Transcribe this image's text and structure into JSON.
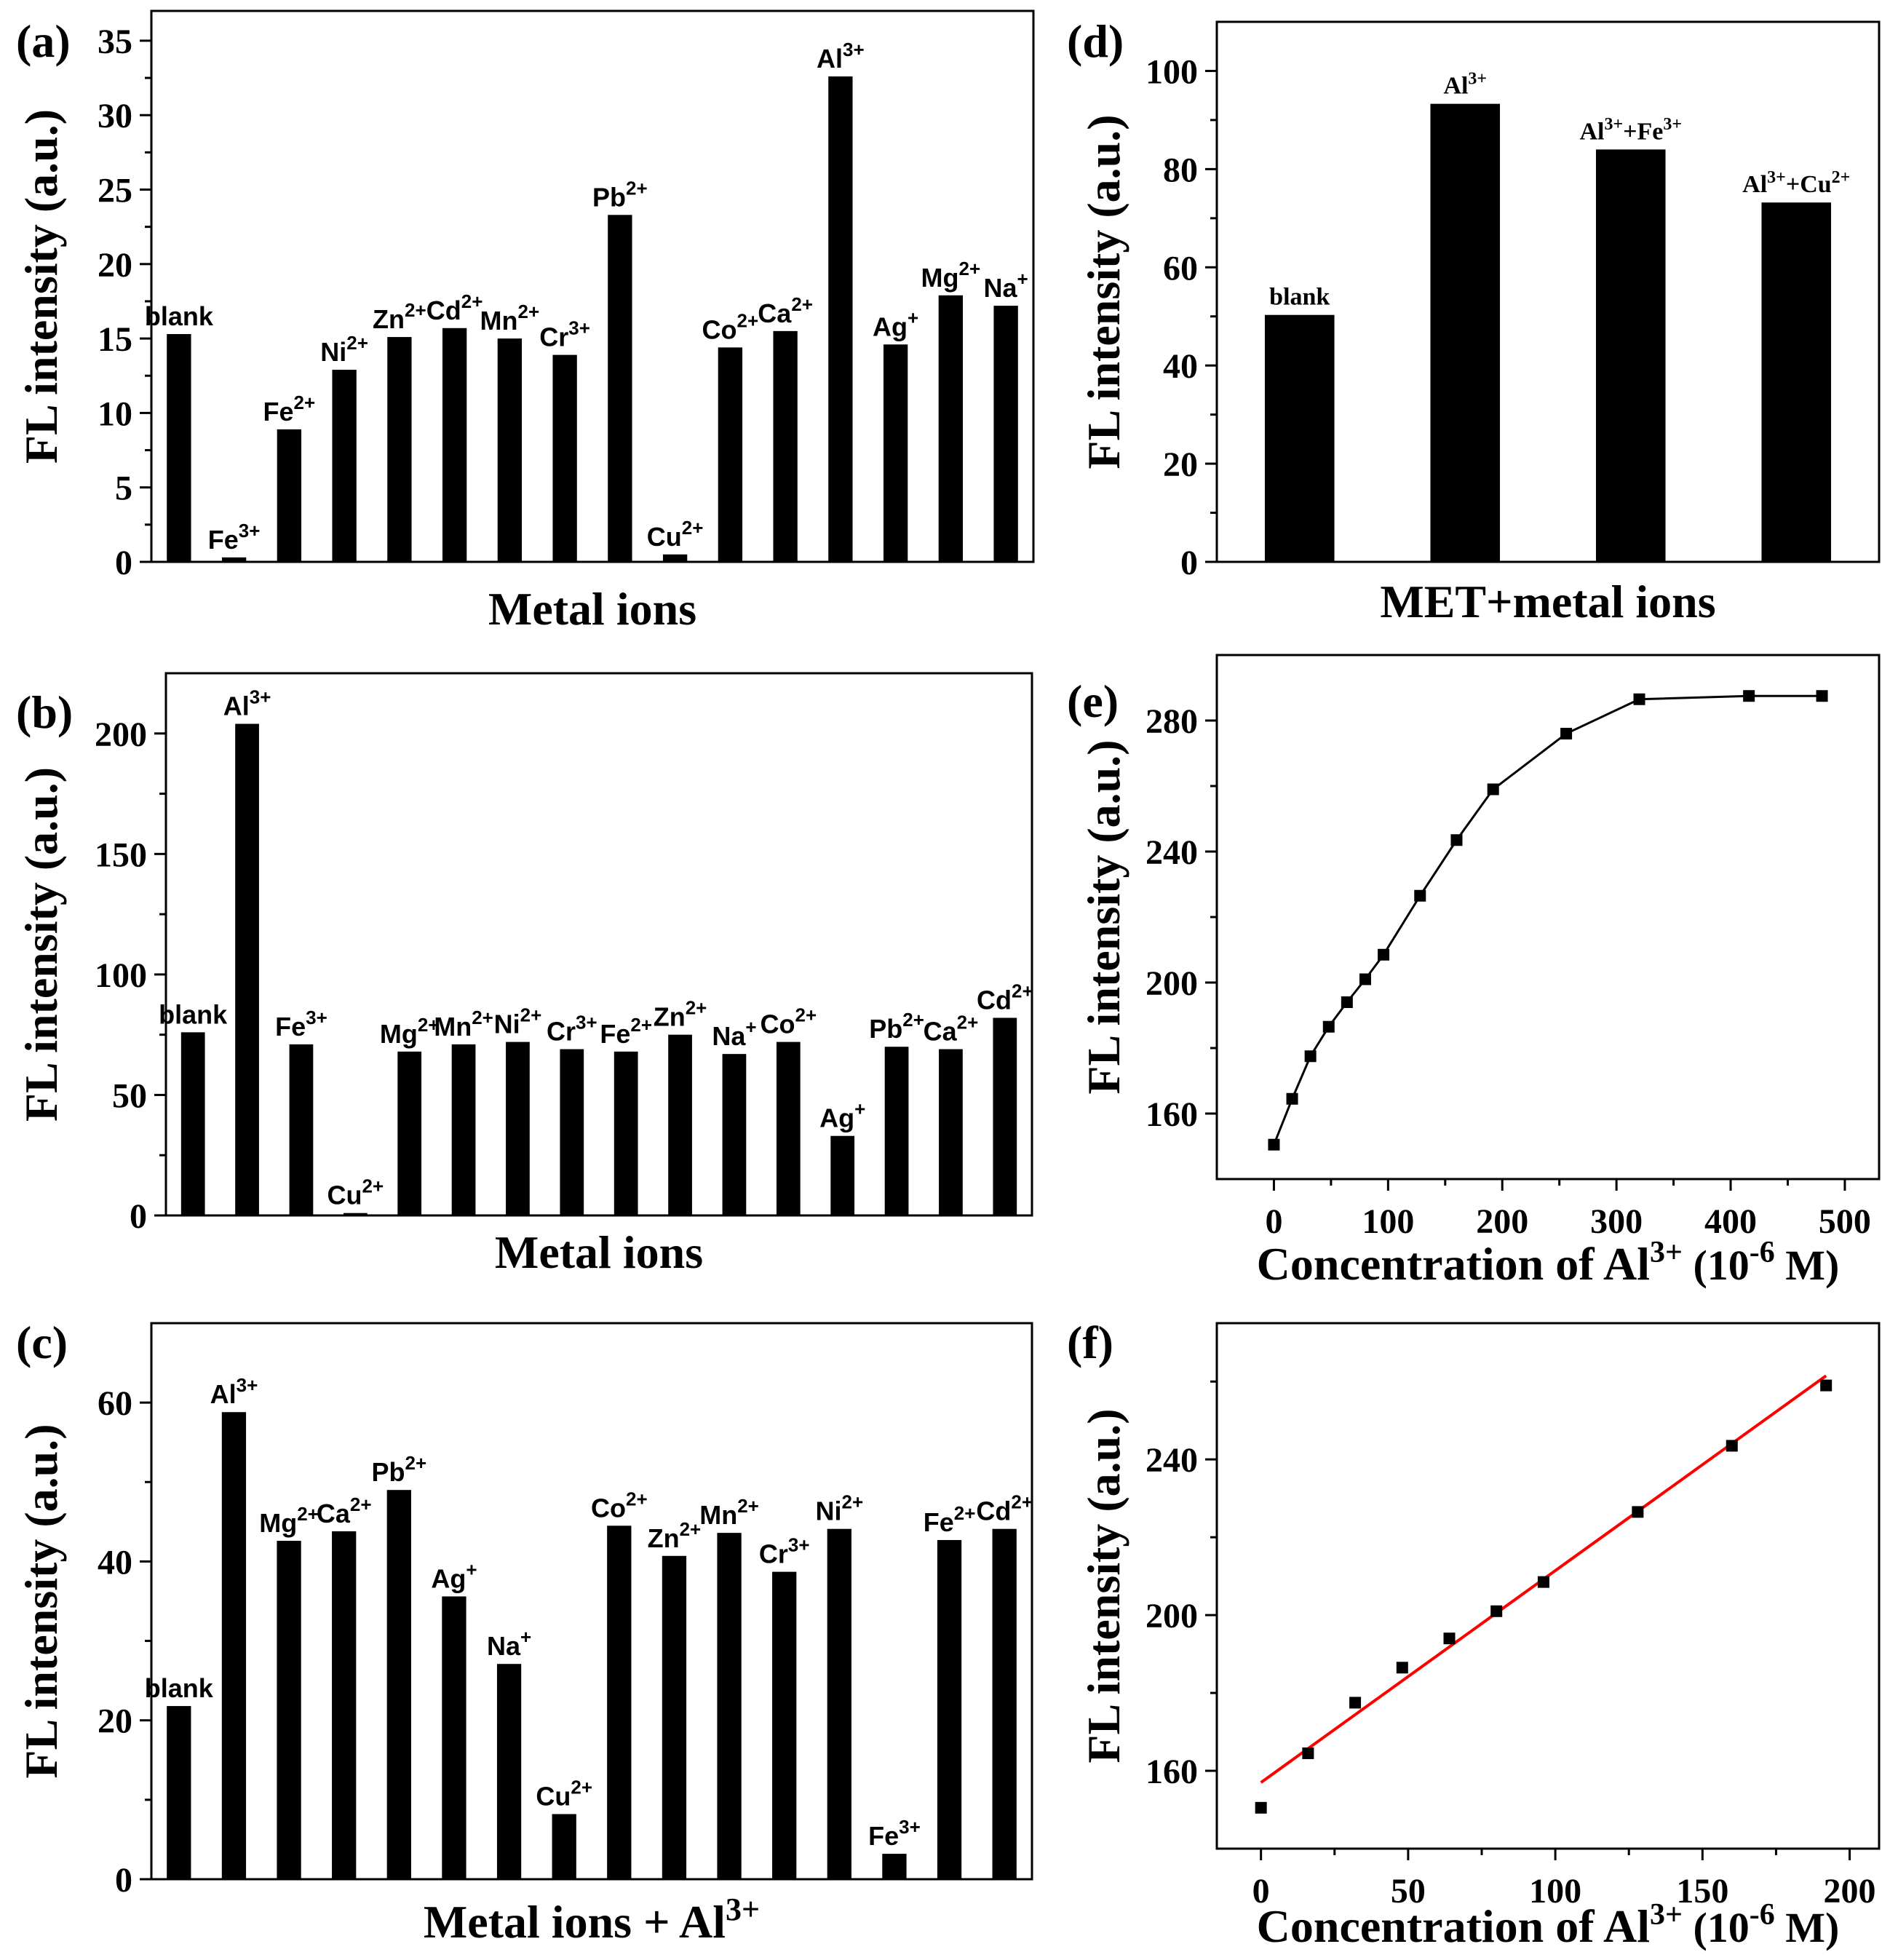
{
  "colors": {
    "bar": "#000000",
    "axis": "#000000",
    "fit_line": "#ff0000",
    "marker": "#000000"
  },
  "chart_data": [
    {
      "id": "a",
      "type": "bar",
      "panel_label": "(a)",
      "ylabel": "FL intensity (a.u.)",
      "xlabel": "Metal ions",
      "ylim": [
        0,
        37
      ],
      "yticks": [
        0,
        5,
        10,
        15,
        20,
        25,
        30,
        35
      ],
      "bars": [
        {
          "base": "blank",
          "sup": "",
          "value": 15.3
        },
        {
          "base": "Fe",
          "sup": "3+",
          "value": 0.3
        },
        {
          "base": "Fe",
          "sup": "2+",
          "value": 8.9
        },
        {
          "base": "Ni",
          "sup": "2+",
          "value": 12.9
        },
        {
          "base": "Zn",
          "sup": "2+",
          "value": 15.1
        },
        {
          "base": "Cd",
          "sup": "2+",
          "value": 15.7
        },
        {
          "base": "Mn",
          "sup": "2+",
          "value": 15.0
        },
        {
          "base": "Cr",
          "sup": "3+",
          "value": 13.9
        },
        {
          "base": "Pb",
          "sup": "2+",
          "value": 23.3
        },
        {
          "base": "Cu",
          "sup": "2+",
          "value": 0.5
        },
        {
          "base": "Co",
          "sup": "2+",
          "value": 14.4
        },
        {
          "base": "Ca",
          "sup": "2+",
          "value": 15.5
        },
        {
          "base": "Al",
          "sup": "3+",
          "value": 32.6
        },
        {
          "base": "Ag",
          "sup": "+",
          "value": 14.6
        },
        {
          "base": "Mg",
          "sup": "2+",
          "value": 17.9
        },
        {
          "base": "Na",
          "sup": "+",
          "value": 17.2
        }
      ]
    },
    {
      "id": "b",
      "type": "bar",
      "panel_label": "(b)",
      "ylabel": "FL intensity (a.u.)",
      "xlabel": "Metal ions",
      "ylim": [
        0,
        225
      ],
      "yticks": [
        0,
        50,
        100,
        150,
        200
      ],
      "bars": [
        {
          "base": "blank",
          "sup": "",
          "value": 76
        },
        {
          "base": "Al",
          "sup": "3+",
          "value": 204
        },
        {
          "base": "Fe",
          "sup": "3+",
          "value": 71
        },
        {
          "base": "Cu",
          "sup": "2+",
          "value": 1
        },
        {
          "base": "Mg",
          "sup": "2+",
          "value": 68
        },
        {
          "base": "Mn",
          "sup": "2+",
          "value": 71
        },
        {
          "base": "Ni",
          "sup": "2+",
          "value": 72
        },
        {
          "base": "Cr",
          "sup": "3+",
          "value": 69
        },
        {
          "base": "Fe",
          "sup": "2+",
          "value": 68
        },
        {
          "base": "Zn",
          "sup": "2+",
          "value": 75
        },
        {
          "base": "Na",
          "sup": "+",
          "value": 67
        },
        {
          "base": "Co",
          "sup": "2+",
          "value": 72
        },
        {
          "base": "Ag",
          "sup": "+",
          "value": 33
        },
        {
          "base": "Pb",
          "sup": "2+",
          "value": 70
        },
        {
          "base": "Ca",
          "sup": "2+",
          "value": 69
        },
        {
          "base": "Cd",
          "sup": "2+",
          "value": 82
        }
      ]
    },
    {
      "id": "c",
      "type": "bar",
      "panel_label": "(c)",
      "ylabel": "FL intensity (a.u.)",
      "xlabel": "Metal ions + Al",
      "xlabel_sup": "3+",
      "ylim": [
        0,
        70
      ],
      "yticks": [
        0,
        20,
        40,
        60
      ],
      "bars": [
        {
          "base": "blank",
          "sup": "",
          "value": 21.8
        },
        {
          "base": "Al",
          "sup": "3+",
          "value": 58.8
        },
        {
          "base": "Mg",
          "sup": "2+",
          "value": 42.6
        },
        {
          "base": "Ca",
          "sup": "2+",
          "value": 43.8
        },
        {
          "base": "Pb",
          "sup": "2+",
          "value": 49.0
        },
        {
          "base": "Ag",
          "sup": "+",
          "value": 35.6
        },
        {
          "base": "Na",
          "sup": "+",
          "value": 27.1
        },
        {
          "base": "Cu",
          "sup": "2+",
          "value": 8.2
        },
        {
          "base": "Co",
          "sup": "2+",
          "value": 44.5
        },
        {
          "base": "Zn",
          "sup": "2+",
          "value": 40.7
        },
        {
          "base": "Mn",
          "sup": "2+",
          "value": 43.6
        },
        {
          "base": "Cr",
          "sup": "3+",
          "value": 38.7
        },
        {
          "base": "Ni",
          "sup": "2+",
          "value": 44.1
        },
        {
          "base": "Fe",
          "sup": "3+",
          "value": 3.2
        },
        {
          "base": "Fe",
          "sup": "2+",
          "value": 42.7
        },
        {
          "base": "Cd",
          "sup": "2+",
          "value": 44.1
        }
      ]
    },
    {
      "id": "d",
      "type": "bar",
      "panel_label": "(d)",
      "ylabel": "FL intensity (a.u.)",
      "xlabel": "MET+metal ions",
      "ylim": [
        0,
        110
      ],
      "yticks": [
        0,
        20,
        40,
        60,
        80,
        100
      ],
      "bars": [
        {
          "label": "blank",
          "parts": [
            {
              "t": "blank"
            }
          ],
          "value": 50.3
        },
        {
          "label": "Al3+",
          "parts": [
            {
              "t": "Al"
            },
            {
              "t": "3+",
              "sup": true
            }
          ],
          "value": 93.3
        },
        {
          "label": "Al3++Fe3+",
          "parts": [
            {
              "t": "Al"
            },
            {
              "t": "3+",
              "sup": true
            },
            {
              "t": "+Fe"
            },
            {
              "t": "3+",
              "sup": true
            }
          ],
          "value": 84.0
        },
        {
          "label": "Al3++Cu2+",
          "parts": [
            {
              "t": "Al"
            },
            {
              "t": "3+",
              "sup": true
            },
            {
              "t": "+Cu"
            },
            {
              "t": "2+",
              "sup": true
            }
          ],
          "value": 73.2
        }
      ]
    },
    {
      "id": "e",
      "type": "line",
      "panel_label": "(e)",
      "ylabel": "FL intensity (a.u.)",
      "xlabel_parts": [
        "Concentration of Al",
        "3+",
        " (10",
        "-6",
        " M)"
      ],
      "xlim": [
        -50,
        530
      ],
      "ylim": [
        140,
        300
      ],
      "xticks": [
        0,
        100,
        200,
        300,
        400,
        500
      ],
      "yticks": [
        160,
        200,
        240,
        280
      ],
      "x": [
        0,
        16,
        32,
        48,
        64,
        80,
        96,
        128,
        160,
        192,
        256,
        320,
        416,
        480
      ],
      "y": [
        150.5,
        164.5,
        177.5,
        186.5,
        194,
        201,
        208.5,
        226.5,
        243.5,
        259,
        276,
        286.5,
        287.5,
        287.5
      ]
    },
    {
      "id": "f",
      "type": "scatter",
      "panel_label": "(f)",
      "ylabel": "FL intensity (a.u.)",
      "xlabel_parts": [
        "Concentration of Al",
        "3+",
        " (10",
        "-6",
        " M)"
      ],
      "xlim": [
        -15,
        210
      ],
      "ylim": [
        140,
        275
      ],
      "xticks": [
        0,
        50,
        100,
        150,
        200
      ],
      "yticks": [
        160,
        200,
        240
      ],
      "x": [
        0,
        16,
        32,
        48,
        64,
        80,
        96,
        128,
        160,
        192
      ],
      "y": [
        150.5,
        164.5,
        177.5,
        186.5,
        194,
        201,
        208.5,
        226.5,
        243.5,
        259
      ],
      "fit_line": {
        "x": [
          0,
          192
        ],
        "y": [
          157,
          261.5
        ]
      }
    }
  ]
}
